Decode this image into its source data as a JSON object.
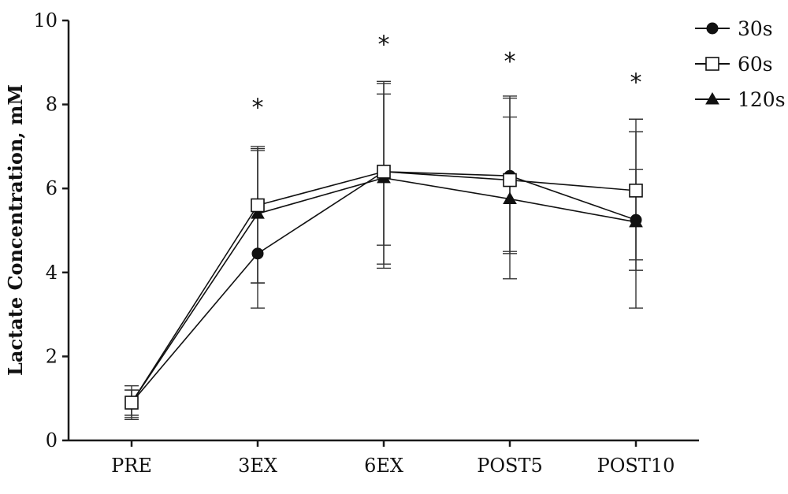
{
  "chart_data": {
    "type": "line",
    "title": "",
    "xlabel": "",
    "ylabel": "Lactate Concentration, mM",
    "ylim": [
      0,
      10
    ],
    "yticks": [
      "0",
      "2",
      "4",
      "6",
      "8",
      "10"
    ],
    "ytick_values": [
      0,
      2,
      4,
      6,
      8,
      10
    ],
    "categories": [
      "PRE",
      "3EX",
      "6EX",
      "POST5",
      "POST10"
    ],
    "series": [
      {
        "name": "30s",
        "marker": "filled-circle",
        "values": [
          0.9,
          4.45,
          6.4,
          6.3,
          5.25
        ],
        "error_low": [
          0.55,
          3.15,
          4.1,
          3.85,
          3.15
        ],
        "error_high": [
          1.2,
          6.9,
          8.25,
          7.7,
          6.45
        ]
      },
      {
        "name": "60s",
        "marker": "open-square",
        "values": [
          0.9,
          5.6,
          6.4,
          6.2,
          5.95
        ],
        "error_low": [
          0.5,
          3.75,
          4.2,
          4.5,
          4.3
        ],
        "error_high": [
          1.3,
          7.0,
          8.55,
          8.2,
          7.65
        ]
      },
      {
        "name": "120s",
        "marker": "filled-triangle",
        "values": [
          0.9,
          5.4,
          6.25,
          5.75,
          5.2
        ],
        "error_low": [
          0.6,
          3.75,
          4.65,
          4.45,
          4.05
        ],
        "error_high": [
          1.2,
          6.95,
          8.5,
          8.15,
          7.35
        ]
      }
    ],
    "annotations": [
      {
        "category": "3EX",
        "text": "*",
        "y": 8.0
      },
      {
        "category": "6EX",
        "text": "*",
        "y": 9.5
      },
      {
        "category": "POST5",
        "text": "*",
        "y": 9.1
      },
      {
        "category": "POST10",
        "text": "*",
        "y": 8.6
      }
    ],
    "legend_placement": "top-right",
    "grid": false
  }
}
